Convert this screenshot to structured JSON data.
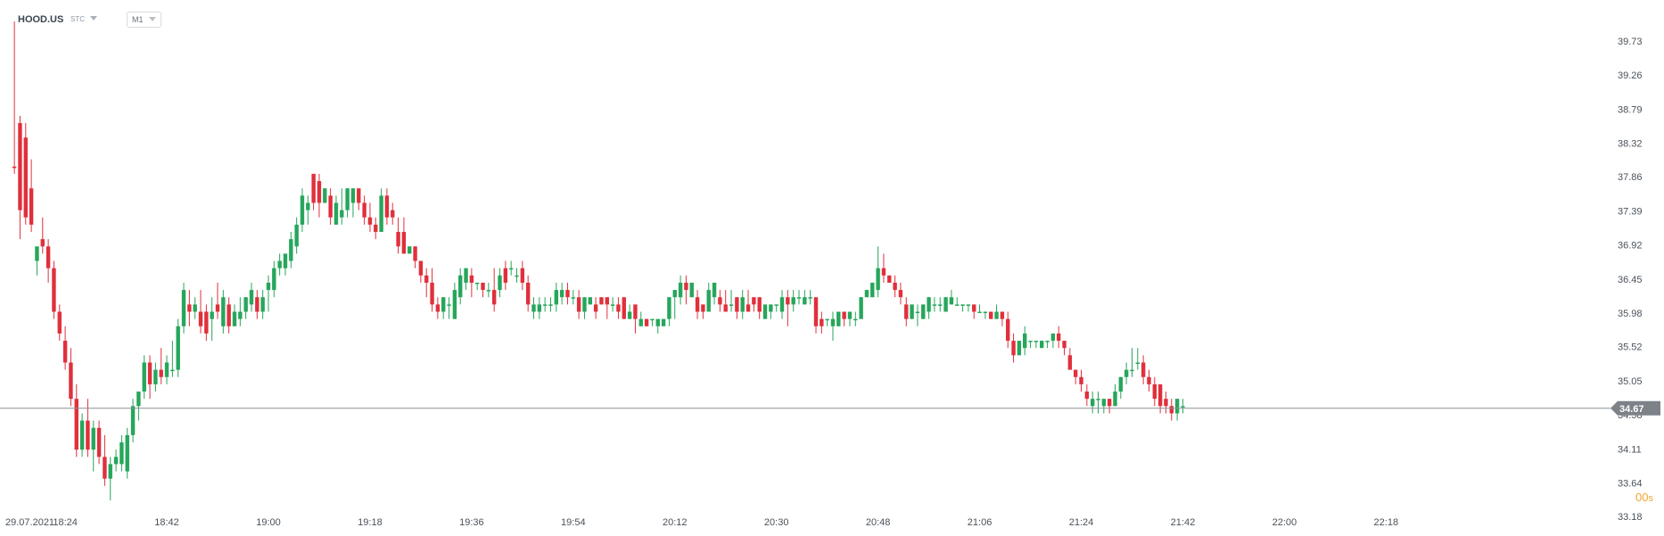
{
  "header": {
    "symbol": "HOOD.US",
    "price_type": "STC",
    "timeframe": "M1"
  },
  "countdown": {
    "value": "00",
    "unit": "s"
  },
  "current_price": {
    "label": "34.67",
    "value": 34.67
  },
  "colors": {
    "up": "#26a65b",
    "down": "#e0303c",
    "line": "#8a8f95",
    "label_bg": "#7c8288",
    "axis_text": "#4a525a",
    "countdown": "#f0a531"
  },
  "chart_data": {
    "type": "candlestick",
    "title": "",
    "xlabel": "",
    "ylabel": "",
    "y_ticks": [
      "39.73",
      "39.26",
      "38.79",
      "38.32",
      "37.86",
      "37.39",
      "36.92",
      "36.45",
      "35.98",
      "35.52",
      "35.05",
      "34.58",
      "34.11",
      "33.64",
      "33.18"
    ],
    "ylim": [
      33.18,
      40.0
    ],
    "x_ticks": [
      "29.07.2021",
      "18:24",
      "18:42",
      "19:00",
      "19:18",
      "19:36",
      "19:54",
      "20:12",
      "20:30",
      "20:48",
      "21:06",
      "21:24",
      "21:42",
      "22:00",
      "22:18"
    ],
    "x_tick_minutes": [
      null,
      0,
      18,
      36,
      54,
      72,
      90,
      108,
      126,
      144,
      162,
      180,
      198,
      216,
      234
    ],
    "x_range_minutes": [
      -9.1,
      234
    ],
    "start_time": "18:24",
    "candles": [
      [
        -9.0,
        38.0,
        40.0,
        37.9,
        37.98
      ],
      [
        -8.0,
        38.6,
        38.7,
        37.0,
        37.4
      ],
      [
        -7.0,
        38.4,
        38.6,
        37.2,
        37.3
      ],
      [
        -6.0,
        37.7,
        38.1,
        37.1,
        37.2
      ],
      [
        -5.0,
        36.7,
        36.9,
        36.5,
        36.9
      ],
      [
        -4.0,
        37.0,
        37.3,
        36.8,
        36.9
      ],
      [
        -3.0,
        36.9,
        37.0,
        36.4,
        36.6
      ],
      [
        -2.0,
        36.6,
        36.7,
        35.9,
        36.0
      ],
      [
        -1.0,
        36.0,
        36.1,
        35.6,
        35.7
      ],
      [
        0.0,
        35.6,
        35.8,
        35.2,
        35.3
      ],
      [
        1.0,
        35.3,
        35.5,
        34.7,
        34.8
      ],
      [
        2.0,
        34.8,
        35.0,
        34.0,
        34.1
      ],
      [
        3.0,
        34.1,
        34.6,
        34.0,
        34.5
      ],
      [
        4.0,
        34.5,
        34.8,
        34.0,
        34.1
      ],
      [
        5.0,
        34.1,
        34.5,
        33.8,
        34.4
      ],
      [
        6.0,
        34.4,
        34.5,
        33.9,
        34.0
      ],
      [
        7.0,
        34.0,
        34.3,
        33.6,
        33.7
      ],
      [
        8.0,
        33.7,
        34.0,
        33.4,
        33.9
      ],
      [
        9.0,
        33.9,
        34.1,
        33.8,
        34.0
      ],
      [
        10.0,
        33.9,
        34.3,
        33.8,
        34.2
      ],
      [
        11.0,
        33.8,
        34.4,
        33.7,
        34.3
      ],
      [
        12.0,
        34.3,
        34.8,
        34.2,
        34.7
      ],
      [
        13.0,
        34.7,
        34.9,
        34.5,
        34.9
      ],
      [
        14.0,
        34.9,
        35.4,
        34.8,
        35.3
      ],
      [
        15.0,
        35.3,
        35.4,
        34.8,
        35.0
      ],
      [
        16.0,
        35.0,
        35.3,
        34.9,
        35.2
      ],
      [
        17.0,
        35.2,
        35.5,
        35.0,
        35.1
      ],
      [
        18.0,
        35.1,
        35.4,
        35.0,
        35.3
      ],
      [
        19.0,
        35.2,
        35.6,
        35.1,
        35.2
      ],
      [
        20.0,
        35.2,
        35.9,
        35.1,
        35.8
      ],
      [
        21.0,
        35.8,
        36.4,
        35.7,
        36.3
      ],
      [
        22.0,
        36.1,
        36.3,
        35.8,
        36.0
      ],
      [
        23.0,
        36.0,
        36.2,
        35.9,
        36.1
      ],
      [
        24.0,
        36.0,
        36.3,
        35.7,
        35.8
      ],
      [
        25.0,
        36.0,
        36.1,
        35.6,
        35.7
      ],
      [
        26.0,
        35.9,
        36.2,
        35.6,
        36.0
      ],
      [
        27.0,
        36.1,
        36.4,
        35.9,
        36.0
      ],
      [
        28.0,
        35.8,
        36.3,
        35.7,
        36.2
      ],
      [
        29.0,
        36.1,
        36.2,
        35.7,
        35.8
      ],
      [
        30.0,
        35.8,
        36.1,
        35.8,
        36.0
      ],
      [
        31.0,
        35.9,
        36.2,
        35.8,
        36.0
      ],
      [
        32.0,
        36.0,
        36.2,
        35.9,
        36.2
      ],
      [
        33.0,
        36.1,
        36.4,
        36.0,
        36.3
      ],
      [
        34.0,
        36.2,
        36.3,
        35.9,
        36.0
      ],
      [
        35.0,
        36.0,
        36.3,
        35.9,
        36.2
      ],
      [
        36.0,
        36.3,
        36.5,
        36.0,
        36.4
      ],
      [
        37.0,
        36.3,
        36.7,
        36.2,
        36.6
      ],
      [
        38.0,
        36.6,
        36.8,
        36.5,
        36.7
      ],
      [
        39.0,
        36.6,
        36.8,
        36.5,
        36.8
      ],
      [
        40.0,
        36.7,
        37.1,
        36.6,
        37.0
      ],
      [
        41.0,
        36.9,
        37.3,
        36.8,
        37.2
      ],
      [
        42.0,
        37.2,
        37.7,
        37.1,
        37.6
      ],
      [
        43.0,
        37.4,
        37.6,
        37.2,
        37.5
      ],
      [
        44.0,
        37.9,
        37.9,
        37.4,
        37.5
      ],
      [
        45.0,
        37.8,
        37.9,
        37.3,
        37.5
      ],
      [
        46.0,
        37.5,
        37.7,
        37.5,
        37.7
      ],
      [
        47.0,
        37.6,
        37.7,
        37.2,
        37.3
      ],
      [
        48.0,
        37.2,
        37.6,
        37.2,
        37.5
      ],
      [
        49.0,
        37.3,
        37.7,
        37.2,
        37.4
      ],
      [
        50.0,
        37.4,
        37.7,
        37.3,
        37.7
      ],
      [
        51.0,
        37.5,
        37.7,
        37.3,
        37.7
      ],
      [
        52.0,
        37.7,
        37.7,
        37.4,
        37.5
      ],
      [
        53.0,
        37.5,
        37.6,
        37.2,
        37.3
      ],
      [
        54.0,
        37.3,
        37.5,
        37.1,
        37.2
      ],
      [
        55.0,
        37.2,
        37.3,
        37.0,
        37.1
      ],
      [
        56.0,
        37.1,
        37.7,
        37.1,
        37.6
      ],
      [
        57.0,
        37.6,
        37.7,
        37.2,
        37.3
      ],
      [
        58.0,
        37.4,
        37.5,
        37.2,
        37.3
      ],
      [
        59.0,
        37.1,
        37.3,
        36.8,
        36.9
      ],
      [
        60.0,
        37.1,
        37.3,
        36.8,
        36.8
      ],
      [
        61.0,
        36.8,
        36.9,
        36.8,
        36.9
      ],
      [
        62.0,
        36.9,
        36.9,
        36.6,
        36.7
      ],
      [
        63.0,
        36.7,
        36.7,
        36.4,
        36.5
      ],
      [
        64.0,
        36.5,
        36.6,
        36.2,
        36.4
      ],
      [
        65.0,
        36.4,
        36.6,
        36.0,
        36.1
      ],
      [
        66.0,
        36.1,
        36.2,
        35.9,
        36.0
      ],
      [
        67.0,
        36.0,
        36.2,
        35.9,
        36.2
      ],
      [
        68.0,
        36.1,
        36.2,
        35.9,
        36.1
      ],
      [
        69.0,
        35.9,
        36.4,
        35.9,
        36.3
      ],
      [
        70.0,
        36.2,
        36.6,
        36.1,
        36.5
      ],
      [
        71.0,
        36.4,
        36.6,
        36.3,
        36.6
      ],
      [
        72.0,
        36.5,
        36.6,
        36.2,
        36.4
      ],
      [
        73.0,
        36.4,
        36.4,
        36.3,
        36.4
      ],
      [
        74.0,
        36.4,
        36.4,
        36.2,
        36.3
      ],
      [
        75.0,
        36.3,
        36.4,
        36.2,
        36.3
      ],
      [
        76.0,
        36.3,
        36.6,
        36.0,
        36.1
      ],
      [
        77.0,
        36.3,
        36.6,
        36.2,
        36.5
      ],
      [
        78.0,
        36.6,
        36.7,
        36.3,
        36.4
      ],
      [
        79.0,
        36.6,
        36.7,
        36.5,
        36.6
      ],
      [
        80.0,
        36.5,
        36.6,
        36.4,
        36.5
      ],
      [
        81.0,
        36.6,
        36.7,
        36.3,
        36.4
      ],
      [
        82.0,
        36.4,
        36.5,
        36.0,
        36.1
      ],
      [
        83.0,
        36.0,
        36.2,
        35.9,
        36.1
      ],
      [
        84.0,
        36.0,
        36.2,
        35.9,
        36.1
      ],
      [
        85.0,
        36.1,
        36.2,
        36.0,
        36.1
      ],
      [
        86.0,
        36.1,
        36.2,
        36.0,
        36.1
      ],
      [
        87.0,
        36.1,
        36.4,
        36.0,
        36.3
      ],
      [
        88.0,
        36.2,
        36.4,
        36.1,
        36.3
      ],
      [
        89.0,
        36.3,
        36.4,
        36.1,
        36.2
      ],
      [
        90.0,
        36.2,
        36.3,
        36.1,
        36.2
      ],
      [
        91.0,
        36.2,
        36.3,
        35.9,
        36.0
      ],
      [
        92.0,
        36.0,
        36.2,
        35.9,
        36.2
      ],
      [
        93.0,
        36.1,
        36.2,
        36.1,
        36.2
      ],
      [
        94.0,
        36.1,
        36.2,
        35.9,
        36.0
      ],
      [
        95.0,
        36.2,
        36.2,
        36.1,
        36.1
      ],
      [
        96.0,
        36.2,
        36.2,
        35.9,
        36.1
      ],
      [
        97.0,
        36.1,
        36.2,
        36.0,
        36.1
      ],
      [
        98.0,
        36.1,
        36.2,
        35.9,
        36.0
      ],
      [
        99.0,
        36.2,
        36.2,
        35.9,
        35.9
      ],
      [
        100.0,
        35.9,
        36.1,
        35.9,
        36.0
      ],
      [
        101.0,
        36.1,
        36.1,
        35.7,
        35.9
      ],
      [
        102.0,
        35.8,
        36.0,
        35.8,
        35.9
      ],
      [
        103.0,
        35.9,
        35.9,
        35.8,
        35.8
      ],
      [
        104.0,
        35.9,
        35.9,
        35.8,
        35.9
      ],
      [
        105.0,
        35.8,
        35.9,
        35.7,
        35.9
      ],
      [
        106.0,
        35.8,
        35.9,
        35.8,
        35.9
      ],
      [
        107.0,
        35.9,
        36.2,
        35.8,
        36.2
      ],
      [
        108.0,
        36.2,
        36.3,
        35.9,
        36.3
      ],
      [
        109.0,
        36.2,
        36.5,
        36.1,
        36.4
      ],
      [
        110.0,
        36.4,
        36.5,
        36.1,
        36.3
      ],
      [
        111.0,
        36.2,
        36.4,
        36.2,
        36.4
      ],
      [
        112.0,
        36.2,
        36.3,
        35.9,
        36.0
      ],
      [
        113.0,
        36.1,
        36.1,
        35.9,
        36.0
      ],
      [
        114.0,
        36.0,
        36.4,
        36.0,
        36.3
      ],
      [
        115.0,
        36.2,
        36.4,
        36.1,
        36.4
      ],
      [
        116.0,
        36.2,
        36.3,
        36.0,
        36.1
      ],
      [
        117.0,
        36.1,
        36.3,
        36.0,
        36.0
      ],
      [
        118.0,
        36.1,
        36.3,
        36.0,
        36.1
      ],
      [
        119.0,
        36.2,
        36.2,
        35.9,
        36.0
      ],
      [
        120.0,
        36.0,
        36.3,
        35.9,
        36.2
      ],
      [
        121.0,
        36.1,
        36.3,
        36.0,
        36.0
      ],
      [
        122.0,
        36.2,
        36.2,
        36.0,
        36.1
      ],
      [
        123.0,
        36.2,
        36.2,
        35.9,
        36.0
      ],
      [
        124.0,
        35.9,
        36.1,
        35.9,
        36.1
      ],
      [
        125.0,
        36.0,
        36.1,
        35.9,
        36.1
      ],
      [
        126.0,
        36.1,
        36.1,
        36.0,
        36.1
      ],
      [
        127.0,
        36.0,
        36.3,
        35.9,
        36.2
      ],
      [
        128.0,
        36.2,
        36.3,
        35.8,
        36.1
      ],
      [
        129.0,
        36.1,
        36.3,
        36.0,
        36.2
      ],
      [
        130.0,
        36.2,
        36.3,
        36.1,
        36.2
      ],
      [
        131.0,
        36.1,
        36.3,
        36.1,
        36.2
      ],
      [
        132.0,
        36.2,
        36.3,
        36.1,
        36.2
      ],
      [
        133.0,
        36.2,
        36.2,
        35.7,
        35.8
      ],
      [
        134.0,
        35.9,
        36.0,
        35.7,
        35.8
      ],
      [
        135.0,
        35.9,
        35.9,
        35.8,
        35.9
      ],
      [
        136.0,
        35.8,
        36.0,
        35.6,
        35.9
      ],
      [
        137.0,
        35.8,
        36.0,
        35.8,
        36.0
      ],
      [
        138.0,
        36.0,
        36.0,
        35.8,
        35.9
      ],
      [
        139.0,
        35.9,
        36.0,
        35.8,
        36.0
      ],
      [
        140.0,
        35.9,
        36.0,
        35.8,
        35.9
      ],
      [
        141.0,
        35.9,
        36.2,
        35.9,
        36.2
      ],
      [
        142.0,
        36.2,
        36.3,
        36.2,
        36.3
      ],
      [
        143.0,
        36.2,
        36.4,
        36.2,
        36.4
      ],
      [
        144.0,
        36.3,
        36.9,
        36.2,
        36.6
      ],
      [
        145.0,
        36.6,
        36.8,
        36.4,
        36.5
      ],
      [
        146.0,
        36.5,
        36.5,
        36.4,
        36.4
      ],
      [
        147.0,
        36.4,
        36.5,
        36.2,
        36.3
      ],
      [
        148.0,
        36.3,
        36.4,
        36.1,
        36.2
      ],
      [
        149.0,
        36.1,
        36.2,
        35.8,
        35.9
      ],
      [
        150.0,
        35.9,
        36.1,
        35.9,
        36.1
      ],
      [
        151.0,
        36.0,
        36.1,
        35.8,
        36.0
      ],
      [
        152.0,
        35.9,
        36.1,
        35.9,
        36.1
      ],
      [
        153.0,
        36.0,
        36.2,
        35.9,
        36.2
      ],
      [
        154.0,
        36.1,
        36.2,
        36.0,
        36.1
      ],
      [
        155.0,
        36.1,
        36.2,
        36.0,
        36.1
      ],
      [
        156.0,
        36.0,
        36.2,
        36.0,
        36.2
      ],
      [
        157.0,
        36.1,
        36.3,
        36.1,
        36.2
      ],
      [
        158.0,
        36.1,
        36.2,
        36.1,
        36.1
      ],
      [
        159.0,
        36.1,
        36.1,
        36.0,
        36.1
      ],
      [
        160.0,
        36.1,
        36.1,
        36.0,
        36.1
      ],
      [
        161.0,
        36.1,
        36.1,
        35.9,
        36.0
      ],
      [
        162.0,
        36.0,
        36.1,
        36.0,
        36.0
      ],
      [
        163.0,
        36.0,
        36.0,
        35.9,
        36.0
      ],
      [
        164.0,
        36.0,
        36.0,
        35.9,
        35.9
      ],
      [
        165.0,
        35.9,
        36.1,
        35.9,
        36.0
      ],
      [
        166.0,
        36.0,
        36.0,
        35.8,
        35.9
      ],
      [
        167.0,
        35.9,
        36.0,
        35.5,
        35.6
      ],
      [
        168.0,
        35.6,
        35.7,
        35.3,
        35.4
      ],
      [
        169.0,
        35.4,
        35.6,
        35.4,
        35.6
      ],
      [
        170.0,
        35.5,
        35.8,
        35.4,
        35.7
      ],
      [
        171.0,
        35.6,
        35.6,
        35.5,
        35.6
      ],
      [
        172.0,
        35.6,
        35.6,
        35.5,
        35.6
      ],
      [
        173.0,
        35.5,
        35.6,
        35.5,
        35.6
      ],
      [
        174.0,
        35.6,
        35.6,
        35.5,
        35.6
      ],
      [
        175.0,
        35.6,
        35.7,
        35.5,
        35.7
      ],
      [
        176.0,
        35.7,
        35.8,
        35.5,
        35.6
      ],
      [
        177.0,
        35.6,
        35.6,
        35.4,
        35.5
      ],
      [
        178.0,
        35.4,
        35.5,
        35.2,
        35.2
      ],
      [
        179.0,
        35.2,
        35.2,
        35.0,
        35.1
      ],
      [
        180.0,
        35.1,
        35.2,
        34.9,
        35.0
      ],
      [
        181.0,
        34.9,
        35.0,
        34.7,
        34.8
      ],
      [
        182.0,
        34.7,
        34.9,
        34.6,
        34.8
      ],
      [
        183.0,
        34.8,
        34.9,
        34.6,
        34.8
      ],
      [
        184.0,
        34.7,
        34.8,
        34.6,
        34.8
      ],
      [
        185.0,
        34.8,
        34.8,
        34.6,
        34.7
      ],
      [
        186.0,
        34.7,
        35.0,
        34.7,
        34.9
      ],
      [
        187.0,
        34.9,
        35.1,
        34.8,
        35.1
      ],
      [
        188.0,
        35.1,
        35.3,
        35.0,
        35.2
      ],
      [
        189.0,
        35.2,
        35.5,
        35.1,
        35.2
      ],
      [
        190.0,
        35.3,
        35.5,
        35.2,
        35.3
      ],
      [
        191.0,
        35.3,
        35.4,
        35.0,
        35.1
      ],
      [
        192.0,
        35.1,
        35.2,
        34.9,
        35.0
      ],
      [
        193.0,
        35.0,
        35.1,
        34.7,
        34.8
      ],
      [
        194.0,
        35.0,
        35.0,
        34.6,
        34.7
      ],
      [
        195.0,
        34.8,
        34.9,
        34.6,
        34.7
      ],
      [
        196.0,
        34.7,
        34.8,
        34.5,
        34.6
      ],
      [
        197.0,
        34.6,
        34.8,
        34.5,
        34.8
      ],
      [
        198.0,
        34.7,
        34.8,
        34.6,
        34.7
      ]
    ]
  }
}
